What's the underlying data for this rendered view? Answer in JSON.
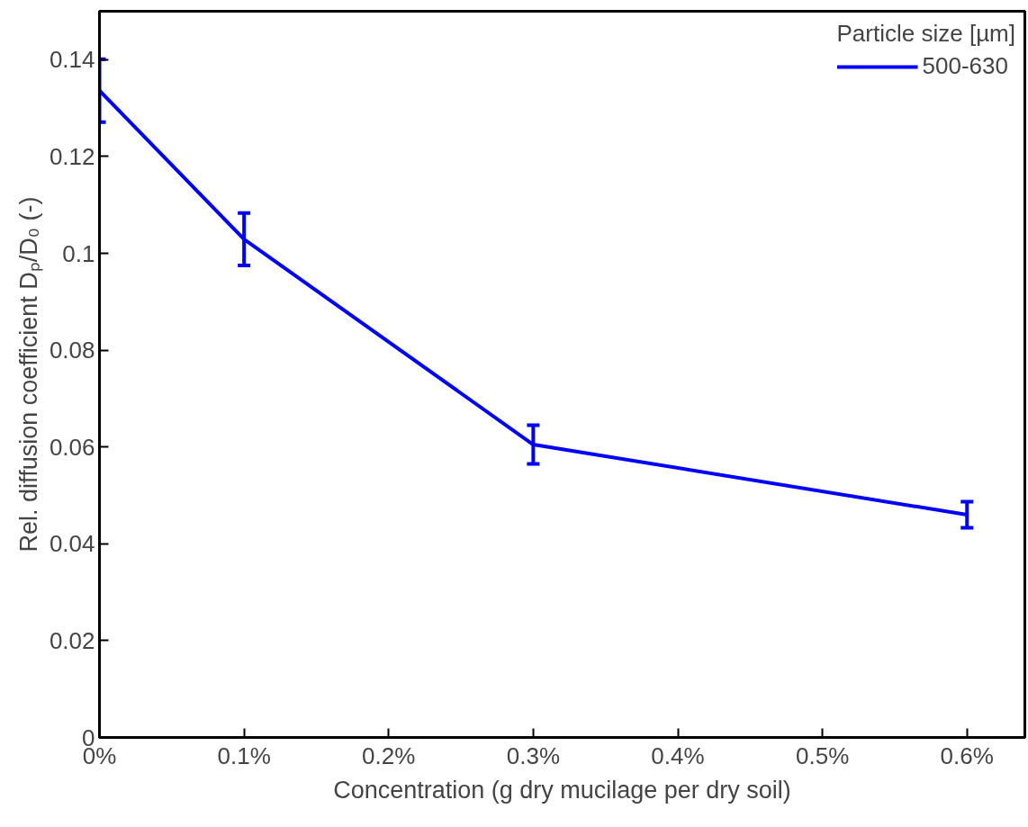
{
  "chart_data": {
    "type": "line",
    "xlabel": "Concentration (g dry mucilage per dry soil)",
    "ylabel": "Rel. diffusion coefficient Dₚ/D₀ (-)",
    "legend_title": "Particle size [µm]",
    "x": [
      0,
      0.1,
      0.3,
      0.6
    ],
    "series": [
      {
        "name": "500-630",
        "color": "#0000ff",
        "values": [
          0.1336,
          0.1029,
          0.0605,
          0.046
        ],
        "errors": [
          0.0065,
          0.0054,
          0.004,
          0.0027
        ]
      }
    ],
    "xlim": [
      0,
      0.64
    ],
    "ylim": [
      0,
      0.15
    ],
    "xticks": [
      {
        "value": 0,
        "label": "0%"
      },
      {
        "value": 0.1,
        "label": "0.1%"
      },
      {
        "value": 0.2,
        "label": "0.2%"
      },
      {
        "value": 0.3,
        "label": "0.3%"
      },
      {
        "value": 0.4,
        "label": "0.4%"
      },
      {
        "value": 0.5,
        "label": "0.5%"
      },
      {
        "value": 0.6,
        "label": "0.6%"
      }
    ],
    "yticks": [
      0,
      {
        "value": 0.02,
        "label": "0.02"
      },
      {
        "value": 0.04,
        "label": "0.04"
      },
      {
        "value": 0.06,
        "label": "0.06"
      },
      {
        "value": 0.08,
        "label": "0.08"
      },
      {
        "value": 0.1,
        "label": "0.1"
      },
      {
        "value": 0.12,
        "label": "0.12"
      },
      {
        "value": 0.14,
        "label": "0.14"
      }
    ],
    "grid": false,
    "legend": "top right",
    "marker": "none",
    "line_style": "solid"
  }
}
